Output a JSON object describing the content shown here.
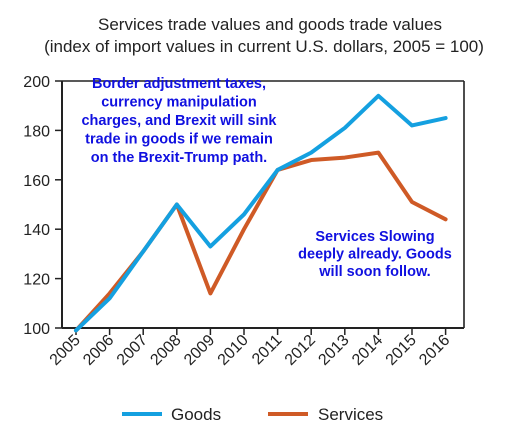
{
  "chart_data": {
    "type": "line",
    "title": "Services trade values and goods trade values",
    "subtitle": "(index of import values in current U.S. dollars, 2005 = 100)",
    "x": [
      "2005",
      "2006",
      "2007",
      "2008",
      "2009",
      "2010",
      "2011",
      "2012",
      "2013",
      "2014",
      "2015",
      "2016"
    ],
    "ylim": [
      100,
      200
    ],
    "yticks": [
      100,
      120,
      140,
      160,
      180,
      200
    ],
    "grid": false,
    "legend_position": "bottom",
    "series": [
      {
        "name": "Goods",
        "color": "#14a0e0",
        "values": [
          99,
          112,
          131,
          150,
          133,
          146,
          164,
          171,
          181,
          194,
          182,
          185
        ]
      },
      {
        "name": "Services",
        "color": "#cf5a26",
        "values": [
          99,
          114,
          131,
          150,
          114,
          140,
          164,
          168,
          169,
          171,
          151,
          144
        ]
      }
    ],
    "annotations": [
      {
        "lines": [
          "Border adjustment taxes,",
          "currency manipulation",
          "charges, and Brexit will sink",
          "trade in goods if we remain",
          "on the Brexit-Trump path."
        ],
        "color": "#1010e0"
      },
      {
        "lines": [
          "Services Slowing",
          "deeply already. Goods",
          "will soon follow."
        ],
        "color": "#1010e0"
      }
    ]
  }
}
